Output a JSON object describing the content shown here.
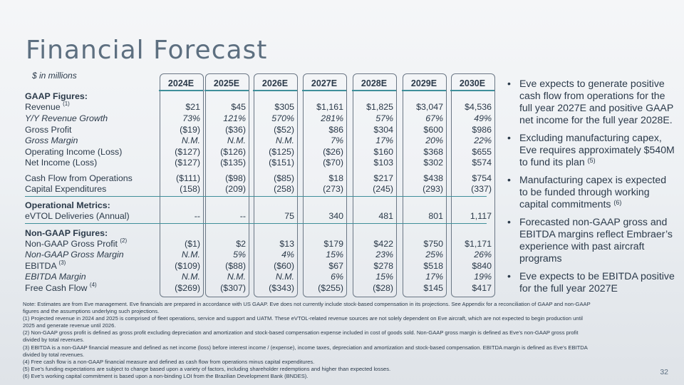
{
  "title": "Financial Forecast",
  "units": "$ in millions",
  "years": [
    "2024E",
    "2025E",
    "2026E",
    "2027E",
    "2028E",
    "2029E",
    "2030E"
  ],
  "rows": {
    "gaap_header": {
      "label": "GAAP Figures:"
    },
    "revenue": {
      "label": "Revenue",
      "sup": "(1)",
      "values": [
        "$21",
        "$45",
        "$305",
        "$1,161",
        "$1,825",
        "$3,047",
        "$4,536"
      ]
    },
    "yoy_growth": {
      "label": "Y/Y Revenue Growth",
      "values": [
        "73%",
        "121%",
        "570%",
        "281%",
        "57%",
        "67%",
        "49%"
      ]
    },
    "gross_profit": {
      "label": "Gross Profit",
      "values": [
        "($19)",
        "($36)",
        "($52)",
        "$86",
        "$304",
        "$600",
        "$986"
      ]
    },
    "gross_margin": {
      "label": "Gross Margin",
      "values": [
        "N.M.",
        "N.M.",
        "N.M.",
        "7%",
        "17%",
        "20%",
        "22%"
      ]
    },
    "operating_income": {
      "label": "Operating Income (Loss)",
      "values": [
        "($127)",
        "($126)",
        "($125)",
        "($26)",
        "$160",
        "$368",
        "$655"
      ]
    },
    "net_income": {
      "label": "Net Income (Loss)",
      "values": [
        "($127)",
        "($135)",
        "($151)",
        "($70)",
        "$103",
        "$302",
        "$574"
      ]
    },
    "cash_flow_ops": {
      "label": "Cash Flow from Operations",
      "values": [
        "($111)",
        "($98)",
        "($85)",
        "$18",
        "$217",
        "$438",
        "$754"
      ]
    },
    "capex": {
      "label": "Capital Expenditures",
      "values": [
        "(158)",
        "(209)",
        "(258)",
        "(273)",
        "(245)",
        "(293)",
        "(337)"
      ]
    },
    "operational_header": {
      "label": "Operational Metrics:"
    },
    "evtol_deliveries": {
      "label": "eVTOL Deliveries (Annual)",
      "values": [
        "--",
        "--",
        "75",
        "340",
        "481",
        "801",
        "1,117"
      ]
    },
    "non_gaap_header": {
      "label": "Non-GAAP Figures:"
    },
    "non_gaap_gross_profit": {
      "label": "Non-GAAP Gross Profit",
      "sup": "(2)",
      "values": [
        "($1)",
        "$2",
        "$13",
        "$179",
        "$422",
        "$750",
        "$1,171"
      ]
    },
    "non_gaap_gross_margin": {
      "label": "Non-GAAP Gross Margin",
      "values": [
        "N.M.",
        "5%",
        "4%",
        "15%",
        "23%",
        "25%",
        "26%"
      ]
    },
    "ebitda": {
      "label": "EBITDA",
      "sup": "(3)",
      "values": [
        "($109)",
        "($88)",
        "($60)",
        "$67",
        "$278",
        "$518",
        "$840"
      ]
    },
    "ebitda_margin": {
      "label": "EBITDA Margin",
      "values": [
        "N.M.",
        "N.M.",
        "N.M.",
        "6%",
        "15%",
        "17%",
        "19%"
      ]
    },
    "free_cash_flow": {
      "label": "Free Cash Flow",
      "sup": "(4)",
      "values": [
        "($269)",
        "($307)",
        "($343)",
        "($255)",
        "($28)",
        "$145",
        "$417"
      ]
    }
  },
  "bullets": [
    {
      "text": "Eve expects to generate positive cash flow from operations for the full year 2027E and positive GAAP net income for the full year 2028E.",
      "sup": ""
    },
    {
      "text": "Excluding manufacturing capex, Eve requires approximately $540M to fund its plan",
      "sup": "(5)"
    },
    {
      "text": "Manufacturing capex is expected to be funded through working capital commitments",
      "sup": "(6)"
    },
    {
      "text": "Forecasted non-GAAP gross and EBITDA margins reflect Embraer’s experience with past aircraft programs",
      "sup": ""
    },
    {
      "text": "Eve expects to be EBITDA positive for the full year 2027E",
      "sup": ""
    }
  ],
  "bullet_char": "•",
  "notes": [
    "Note: Estimates are from Eve management. Eve financials are prepared in accordance with US GAAP. Eve does not currently include stock-based compensation in its projections. See Appendix for a reconciliation of GAAP and non-GAAP figures and the assumptions underlying such projections.",
    "(1) Projected revenue in 2024 and 2025 is comprised of fleet operations, service and support and UATM. These eVTOL-related revenue sources are not solely dependent on Eve aircraft, which are not expected to begin production until 2025 and generate revenue until 2026.",
    "(2) Non-GAAP gross profit is defined as gross profit excluding depreciation and amortization and stock-based compensation expense included in cost of goods sold. Non-GAAP gross margin is defined as Eve’s non-GAAP gross profit divided by total revenues.",
    "(3) EBITDA is a non-GAAP financial measure and defined as net income (loss) before interest income / (expense), income taxes, depreciation and amortization and stock-based compensation. EBITDA margin is defined as Eve’s EBITDA divided by total revenues.",
    "(4) Free cash flow is a non-GAAP financial measure and defined as cash flow from operations minus capital expenditures.",
    "(5) Eve’s funding expectations are subject to change based upon a variety of factors, including shareholder redemptions and higher than expected losses.",
    "(6) Eve’s working capital commitment is based upon a non-binding LOI from the Brazilian Development Bank (BNDES)."
  ],
  "page_number": "32"
}
